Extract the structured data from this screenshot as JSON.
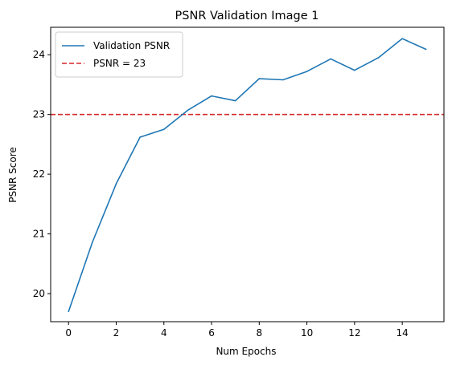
{
  "chart_data": {
    "type": "line",
    "title": "PSNR Validation Image 1",
    "xlabel": "Num Epochs",
    "ylabel": "PSNR Score",
    "xlim": [
      -0.75,
      15.75
    ],
    "ylim": [
      19.53,
      24.46
    ],
    "xticks": [
      0,
      2,
      4,
      6,
      8,
      10,
      12,
      14
    ],
    "yticks": [
      20,
      21,
      22,
      23,
      24
    ],
    "grid": false,
    "legend_position": "top-left",
    "series": [
      {
        "name": "Validation PSNR",
        "color": "#1f77b4",
        "style": "solid",
        "x": [
          0,
          1,
          2,
          3,
          4,
          5,
          6,
          7,
          8,
          9,
          10,
          11,
          12,
          13,
          14,
          15
        ],
        "y": [
          19.7,
          20.86,
          21.84,
          22.62,
          22.75,
          23.07,
          23.31,
          23.23,
          23.6,
          23.58,
          23.72,
          23.93,
          23.74,
          23.95,
          24.27,
          24.09
        ]
      }
    ],
    "reference_lines": [
      {
        "name": "PSNR = 23",
        "y": 23,
        "color": "#d62728",
        "style": "dashed"
      }
    ]
  }
}
